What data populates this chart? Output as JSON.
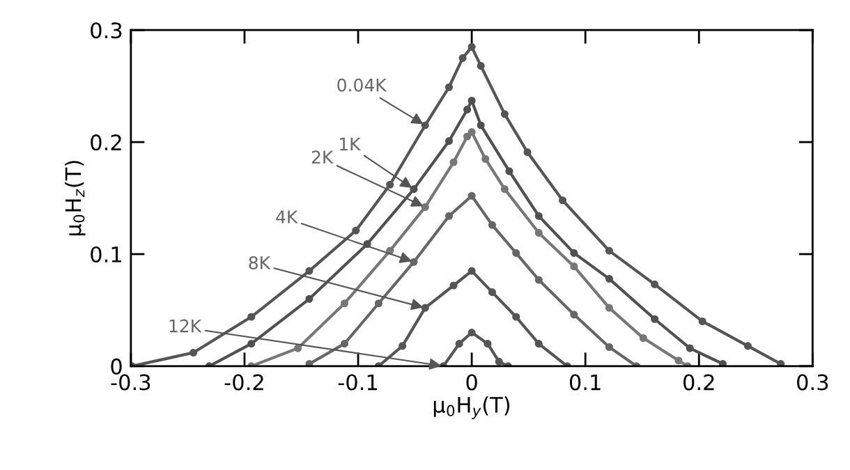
{
  "chart_data": {
    "type": "line",
    "xlabel": "μ$_{0}$H$_{y}$(T)",
    "ylabel": "μ$_{0}$H$_{z}$(T)",
    "xlim": [
      -0.3,
      0.3
    ],
    "ylim": [
      0,
      0.3
    ],
    "xticks": [
      -0.3,
      -0.2,
      -0.1,
      0,
      0.1,
      0.2,
      0.3
    ],
    "yticks": [
      0,
      0.1,
      0.2,
      0.3
    ],
    "marker": "circle",
    "grid": false,
    "legend": false,
    "series": [
      {
        "color": "#555555",
        "x": [
          -0.299,
          -0.245,
          -0.194,
          -0.143,
          -0.102,
          -0.072,
          -0.041,
          -0.02,
          -0.008,
          0,
          0.008,
          0.029,
          0.049,
          0.08,
          0.121,
          0.161,
          0.203,
          0.243,
          0.272
        ],
        "values": [
          0,
          0.012,
          0.044,
          0.085,
          0.121,
          0.162,
          0.215,
          0.249,
          0.275,
          0.285,
          0.268,
          0.225,
          0.191,
          0.148,
          0.103,
          0.073,
          0.04,
          0.018,
          0.002
        ]
      },
      {
        "color": "#505050",
        "x": [
          -0.231,
          -0.194,
          -0.143,
          -0.092,
          -0.051,
          -0.02,
          -0.004,
          0,
          0.008,
          0.033,
          0.059,
          0.09,
          0.121,
          0.161,
          0.192,
          0.221
        ],
        "values": [
          0,
          0.02,
          0.06,
          0.109,
          0.158,
          0.201,
          0.229,
          0.237,
          0.215,
          0.174,
          0.134,
          0.101,
          0.078,
          0.042,
          0.016,
          0.002
        ]
      },
      {
        "color": "#777777",
        "x": [
          -0.194,
          -0.153,
          -0.112,
          -0.072,
          -0.041,
          -0.016,
          -0.004,
          0,
          0.012,
          0.029,
          0.059,
          0.09,
          0.121,
          0.151,
          0.182,
          0.19
        ],
        "values": [
          0,
          0.016,
          0.056,
          0.103,
          0.142,
          0.182,
          0.205,
          0.209,
          0.185,
          0.158,
          0.119,
          0.089,
          0.052,
          0.025,
          0.005,
          0
        ]
      },
      {
        "color": "#666666",
        "x": [
          -0.143,
          -0.112,
          -0.082,
          -0.051,
          -0.02,
          0,
          0.018,
          0.039,
          0.059,
          0.09,
          0.121,
          0.145
        ],
        "values": [
          0.002,
          0.02,
          0.056,
          0.093,
          0.134,
          0.152,
          0.126,
          0.101,
          0.077,
          0.046,
          0.017,
          0
        ]
      },
      {
        "color": "#555555",
        "x": [
          -0.082,
          -0.061,
          -0.041,
          -0.016,
          0,
          0.018,
          0.039,
          0.059,
          0.084
        ],
        "values": [
          0,
          0.018,
          0.052,
          0.072,
          0.085,
          0.066,
          0.044,
          0.02,
          0
        ]
      },
      {
        "color": "#555555",
        "x": [
          -0.025,
          -0.011,
          0,
          0.014,
          0.024,
          0.032
        ],
        "values": [
          0,
          0.02,
          0.03,
          0.02,
          0.004,
          0
        ]
      }
    ],
    "annotations": [
      {
        "text": "0.04K",
        "x": -0.041,
        "y": 0.215
      },
      {
        "text": "1K",
        "x": -0.051,
        "y": 0.158
      },
      {
        "text": "2K",
        "x": -0.041,
        "y": 0.142
      },
      {
        "text": "4K",
        "x": -0.051,
        "y": 0.093
      },
      {
        "text": "8K",
        "x": -0.041,
        "y": 0.052
      },
      {
        "text": "12K",
        "x": -0.025,
        "y": 0
      }
    ]
  }
}
